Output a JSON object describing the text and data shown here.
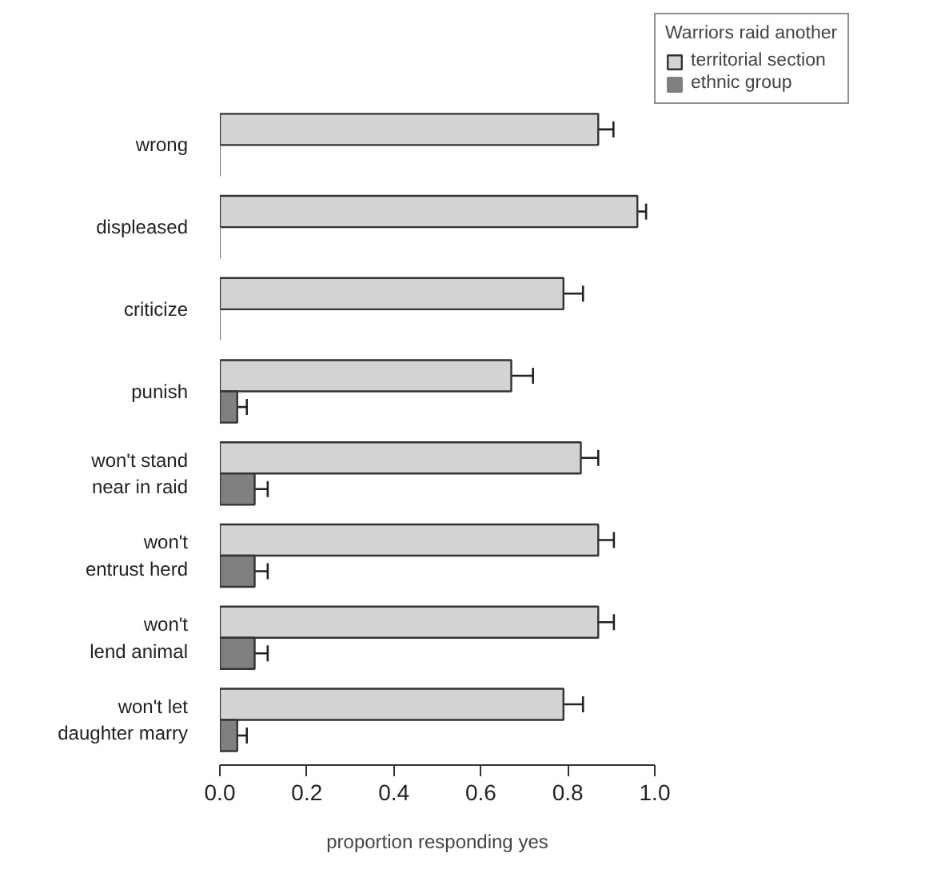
{
  "chart_data": {
    "type": "bar",
    "orientation": "horizontal",
    "xlabel": "proportion responding yes",
    "legend_title": "Warriors raid another",
    "categories": [
      "wrong",
      "displeased",
      "criticize",
      "punish",
      "won't stand\nnear in raid",
      "won't\nentrust herd",
      "won't\nlend animal",
      "won't let\ndaughter marry"
    ],
    "series": [
      {
        "name": "territorial section",
        "color": "#d3d3d3",
        "values": [
          0.87,
          0.96,
          0.79,
          0.67,
          0.83,
          0.87,
          0.87,
          0.79
        ],
        "errors": [
          0.035,
          0.02,
          0.045,
          0.05,
          0.04,
          0.036,
          0.036,
          0.045
        ]
      },
      {
        "name": "ethnic group",
        "color": "#808080",
        "values": [
          0,
          0,
          0,
          0.04,
          0.08,
          0.08,
          0.08,
          0.04
        ],
        "errors": [
          null,
          null,
          null,
          0.022,
          0.03,
          0.03,
          0.03,
          0.022
        ]
      }
    ],
    "xlim": [
      0,
      1
    ],
    "xticks": [
      {
        "value": 0,
        "label": "0.0"
      },
      {
        "value": 0.2,
        "label": "0.2"
      },
      {
        "value": 0.4,
        "label": "0.4"
      },
      {
        "value": 0.6,
        "label": "0.6"
      },
      {
        "value": 0.8,
        "label": "0.8"
      },
      {
        "value": 1,
        "label": "1.0"
      }
    ],
    "grid": false,
    "legend": "top right"
  }
}
